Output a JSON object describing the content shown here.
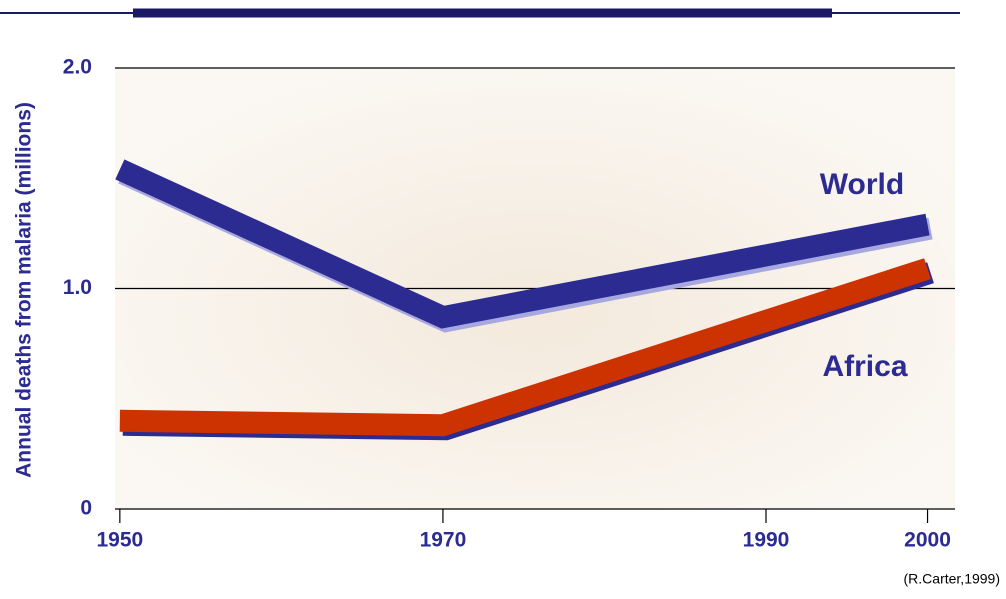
{
  "chart_data": {
    "type": "line",
    "y_label": "Annual deaths from malaria (millions)",
    "source": "(R.Carter,1999)",
    "x": [
      1950,
      1970,
      2000
    ],
    "xlim": [
      1949.7,
      2001.7
    ],
    "xticks": [
      1950,
      1970,
      1990,
      2000
    ],
    "ylim": [
      0,
      2
    ],
    "yticks": [
      0,
      {
        "value": 1,
        "label": "1.0"
      },
      {
        "value": 2,
        "label": "2.0"
      }
    ],
    "grid": true,
    "series": [
      {
        "name": "World",
        "color": "#2b2b91",
        "values": [
          1.54,
          0.87,
          1.29
        ]
      },
      {
        "name": "Africa",
        "color": "#cc3300",
        "values": [
          0.4,
          0.38,
          1.09
        ]
      }
    ]
  }
}
